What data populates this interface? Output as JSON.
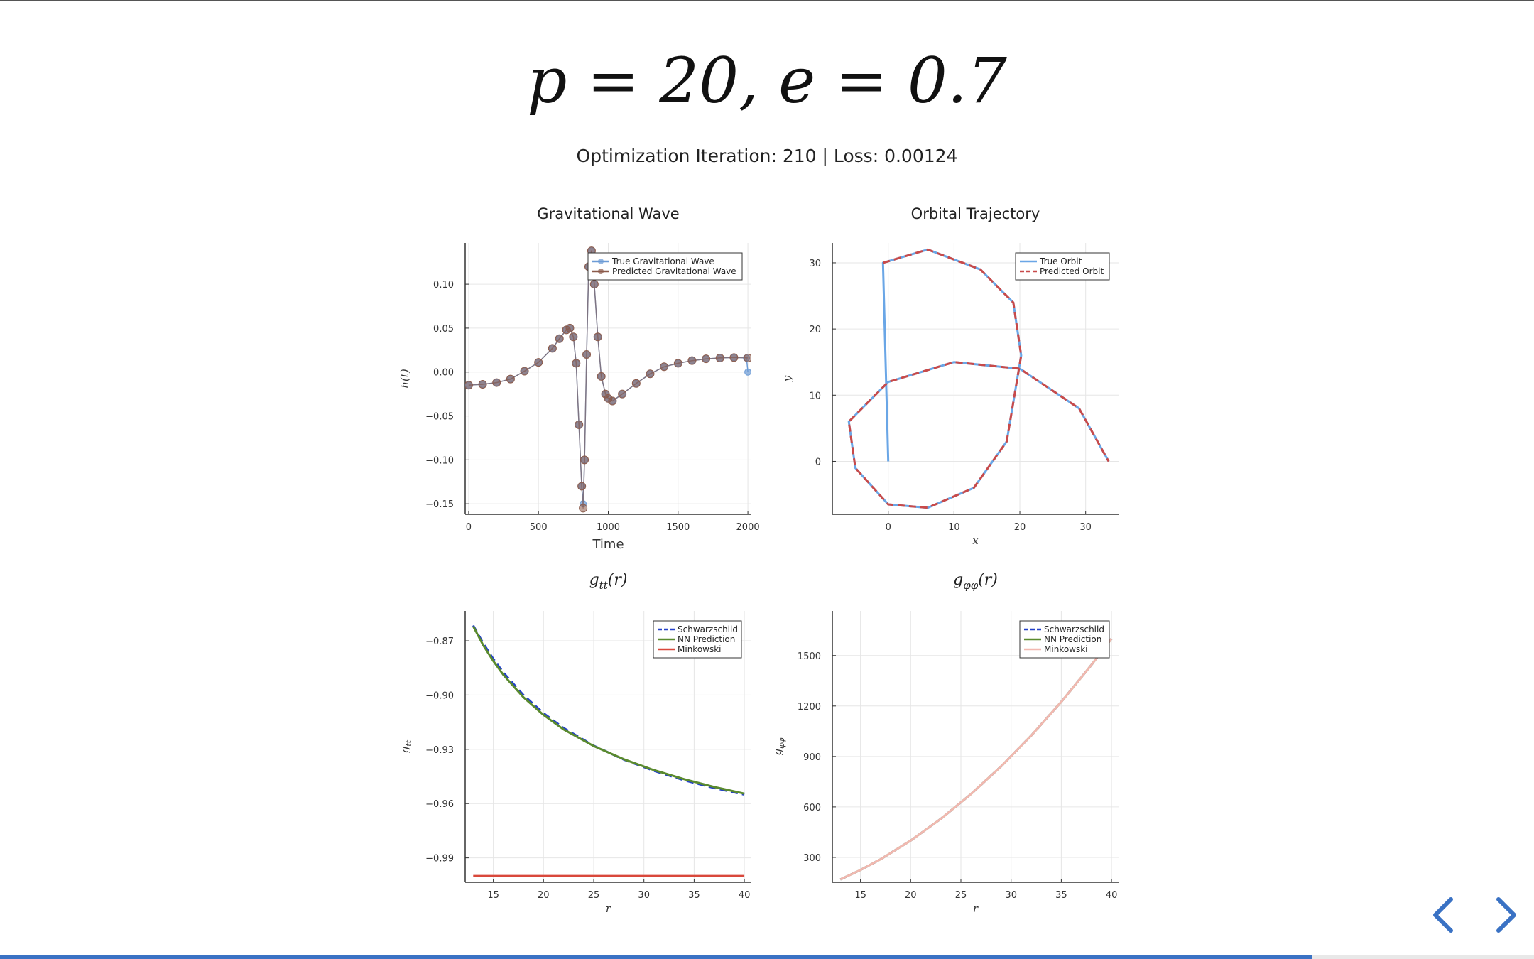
{
  "slide": {
    "title": "p = 20, e = 0.7",
    "subtitle": "Optimization Iteration: 210 | Loss: 0.00124",
    "progress": 0.855
  },
  "icons": {
    "prev": "chevron-left-icon",
    "next": "chevron-right-icon",
    "accent": "#3a72c4"
  },
  "chart_data": [
    {
      "id": "gw",
      "type": "line",
      "title": "Gravitational Wave",
      "xlabel": "Time",
      "ylabel": "h(t)",
      "xlim": [
        -25,
        2025
      ],
      "ylim": [
        -0.162,
        0.147
      ],
      "xticks": [
        0,
        500,
        1000,
        1500,
        2000
      ],
      "xtick_labels": [
        "0",
        "500",
        "1000",
        "1500",
        "2000"
      ],
      "yticks": [
        0.1,
        0.05,
        0.0,
        -0.05,
        -0.1,
        -0.15
      ],
      "ytick_labels": [
        "0.10",
        "0.05",
        "0.00",
        "−0.05",
        "−0.10",
        "−0.15"
      ],
      "grid": true,
      "legend": "top-right",
      "series": [
        {
          "name": "True Gravitational Wave",
          "color": "#6c9bd6",
          "marker": "circle",
          "x": [
            0,
            100,
            200,
            300,
            400,
            500,
            600,
            650,
            700,
            725,
            750,
            770,
            790,
            810,
            820,
            830,
            845,
            860,
            880,
            900,
            925,
            950,
            980,
            1000,
            1030,
            1100,
            1200,
            1300,
            1400,
            1500,
            1600,
            1700,
            1800,
            1900,
            1990,
            2000
          ],
          "y": [
            -0.015,
            -0.014,
            -0.012,
            -0.008,
            0.001,
            0.011,
            0.027,
            0.038,
            0.048,
            0.05,
            0.04,
            0.01,
            -0.06,
            -0.13,
            -0.15,
            -0.1,
            0.02,
            0.12,
            0.138,
            0.1,
            0.04,
            -0.005,
            -0.025,
            -0.03,
            -0.033,
            -0.025,
            -0.013,
            -0.002,
            0.006,
            0.01,
            0.013,
            0.015,
            0.016,
            0.0165,
            0.016,
            0.0
          ]
        },
        {
          "name": "Predicted Gravitational Wave",
          "color": "#8b5a4a",
          "marker": "circle",
          "x": [
            0,
            100,
            200,
            300,
            400,
            500,
            600,
            650,
            700,
            725,
            750,
            770,
            790,
            810,
            820,
            830,
            845,
            860,
            880,
            900,
            925,
            950,
            980,
            1000,
            1030,
            1100,
            1200,
            1300,
            1400,
            1500,
            1600,
            1700,
            1800,
            1900,
            2000
          ],
          "y": [
            -0.015,
            -0.014,
            -0.012,
            -0.008,
            0.001,
            0.011,
            0.027,
            0.038,
            0.048,
            0.05,
            0.04,
            0.01,
            -0.06,
            -0.13,
            -0.155,
            -0.1,
            0.02,
            0.12,
            0.138,
            0.1,
            0.04,
            -0.005,
            -0.025,
            -0.03,
            -0.033,
            -0.025,
            -0.013,
            -0.002,
            0.006,
            0.01,
            0.013,
            0.015,
            0.016,
            0.0165,
            0.016
          ]
        }
      ]
    },
    {
      "id": "orbit",
      "type": "line",
      "title": "Orbital Trajectory",
      "xlabel": "x",
      "ylabel": "y",
      "xlim": [
        -8.5,
        35
      ],
      "ylim": [
        -8,
        33
      ],
      "xticks": [
        0,
        10,
        20,
        30
      ],
      "xtick_labels": [
        "0",
        "10",
        "20",
        "30"
      ],
      "yticks": [
        0,
        10,
        20,
        30
      ],
      "ytick_labels": [
        "0",
        "10",
        "20",
        "30"
      ],
      "grid": true,
      "legend": "top-right",
      "series": [
        {
          "name": "True Orbit",
          "color": "#6aa6e6",
          "dash": "solid",
          "x": [
            0,
            -0.8,
            6,
            14,
            19,
            20.2,
            18,
            13,
            6,
            0,
            -5,
            -6,
            0,
            10,
            20,
            29,
            33.5
          ],
          "y": [
            0,
            30,
            32,
            29,
            24,
            16,
            3,
            -4,
            -7,
            -6.5,
            -1,
            6,
            12,
            15,
            14,
            8,
            0
          ]
        },
        {
          "name": "Predicted Orbit",
          "color": "#c84a4a",
          "dash": "dashed",
          "x": [
            -0.8,
            6,
            14,
            19,
            20.2,
            18,
            13,
            6,
            0,
            -5,
            -6,
            0,
            10,
            20,
            29,
            33.5
          ],
          "y": [
            30,
            32,
            29,
            24,
            16,
            3,
            -4,
            -7,
            -6.5,
            -1,
            6,
            12,
            15,
            14,
            8,
            0
          ]
        }
      ]
    },
    {
      "id": "gtt",
      "type": "line",
      "title": "g_tt(r)",
      "xlabel": "r",
      "ylabel": "g_tt",
      "xlim": [
        12.2,
        40.7
      ],
      "ylim": [
        -1.0035,
        -0.8535
      ],
      "xticks": [
        15,
        20,
        25,
        30,
        35,
        40
      ],
      "xtick_labels": [
        "15",
        "20",
        "25",
        "30",
        "35",
        "40"
      ],
      "yticks": [
        -0.87,
        -0.9,
        -0.93,
        -0.96,
        -0.99
      ],
      "ytick_labels": [
        "−0.87",
        "−0.90",
        "−0.93",
        "−0.96",
        "−0.99"
      ],
      "grid": true,
      "legend": "top-right",
      "series": [
        {
          "name": "Schwarzschild",
          "color": "#2340c8",
          "dash": "dashed",
          "x": [
            13,
            14,
            15,
            16,
            18,
            20,
            22,
            25,
            28,
            31,
            34,
            37,
            40
          ],
          "y": [
            -0.8615,
            -0.8714,
            -0.88,
            -0.8875,
            -0.9,
            -0.91,
            -0.9182,
            -0.928,
            -0.9357,
            -0.9419,
            -0.9471,
            -0.9514,
            -0.955
          ]
        },
        {
          "name": "NN Prediction",
          "color": "#5a8a2e",
          "dash": "solid",
          "x": [
            13,
            14,
            15,
            16,
            18,
            20,
            22,
            25,
            28,
            31,
            34,
            37,
            40
          ],
          "y": [
            -0.862,
            -0.8725,
            -0.8812,
            -0.8888,
            -0.9012,
            -0.911,
            -0.919,
            -0.9282,
            -0.9355,
            -0.9415,
            -0.9465,
            -0.9508,
            -0.9545
          ]
        },
        {
          "name": "Minkowski",
          "color": "#d9483b",
          "dash": "solid",
          "x": [
            13,
            40
          ],
          "y": [
            -1.0,
            -1.0
          ]
        }
      ]
    },
    {
      "id": "gphiphi",
      "type": "line",
      "title": "g_φφ(r)",
      "xlabel": "r",
      "ylabel": "g_φφ",
      "xlim": [
        12.2,
        40.7
      ],
      "ylim": [
        152,
        1765
      ],
      "xticks": [
        15,
        20,
        25,
        30,
        35,
        40
      ],
      "xtick_labels": [
        "15",
        "20",
        "25",
        "30",
        "35",
        "40"
      ],
      "yticks": [
        300,
        600,
        900,
        1200,
        1500
      ],
      "ytick_labels": [
        "300",
        "600",
        "900",
        "1200",
        "1500"
      ],
      "grid": true,
      "legend": "top-right",
      "series": [
        {
          "name": "Schwarzschild",
          "color": "#2340c8",
          "dash": "dashed",
          "x": [
            13,
            15,
            17,
            20,
            23,
            26,
            29,
            32,
            35,
            38,
            40
          ],
          "y": [
            169,
            225,
            289,
            400,
            529,
            676,
            841,
            1024,
            1225,
            1444,
            1600
          ]
        },
        {
          "name": "NN Prediction",
          "color": "#5a8a2e",
          "dash": "solid",
          "x": [
            13,
            15,
            17,
            20,
            23,
            26,
            29,
            32,
            35,
            38,
            40
          ],
          "y": [
            169,
            225,
            289,
            400,
            529,
            676,
            841,
            1024,
            1225,
            1444,
            1600
          ]
        },
        {
          "name": "Minkowski",
          "color": "#f2b8b0",
          "dash": "solid",
          "x": [
            13,
            15,
            17,
            20,
            23,
            26,
            29,
            32,
            35,
            38,
            40
          ],
          "y": [
            169,
            225,
            289,
            400,
            529,
            676,
            841,
            1024,
            1225,
            1444,
            1600
          ]
        }
      ]
    }
  ]
}
